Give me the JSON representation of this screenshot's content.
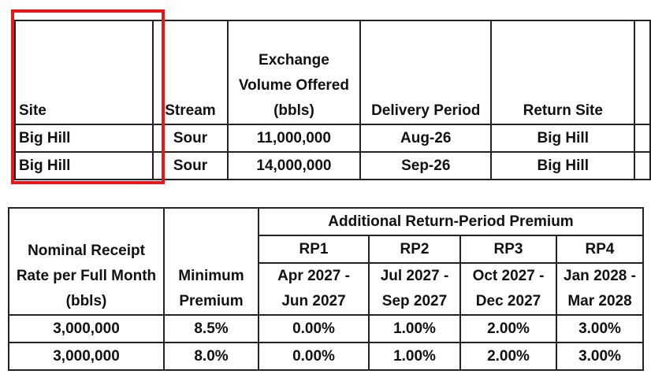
{
  "table1": {
    "header": [
      "Site",
      "Stream",
      "Exchange Volume Offered (bbls)",
      "Delivery Period",
      "Return Site"
    ],
    "rows": [
      [
        "Big Hill",
        "Sour",
        "11,000,000",
        "Aug-26",
        "Big Hill"
      ],
      [
        "Big Hill",
        "Sour",
        "14,000,000",
        "Sep-26",
        "Big Hill"
      ]
    ]
  },
  "table2": {
    "nominal_header": "Nominal Receipt Rate per Full Month (bbls)",
    "minimum_header": "Minimum Premium",
    "group_header": "Additional Return-Period Premium",
    "periods": [
      {
        "name": "RP1",
        "dates": "Apr 2027 - Jun 2027"
      },
      {
        "name": "RP2",
        "dates": "Jul 2027 - Sep 2027"
      },
      {
        "name": "RP3",
        "dates": "Oct 2027 - Dec 2027"
      },
      {
        "name": "RP4",
        "dates": "Jan 2028 - Mar 2028"
      }
    ],
    "rows": [
      [
        "3,000,000",
        "8.5%",
        "0.00%",
        "1.00%",
        "2.00%",
        "3.00%"
      ],
      [
        "3,000,000",
        "8.0%",
        "0.00%",
        "1.00%",
        "2.00%",
        "3.00%"
      ]
    ]
  }
}
